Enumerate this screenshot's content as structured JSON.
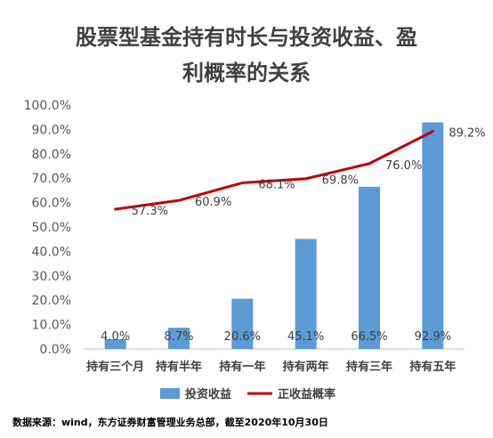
{
  "chart_data": {
    "type": "bar",
    "title_line1": "股票型基金持有时长与投资收益、盈",
    "title_line2": "利概率的关系",
    "categories": [
      "持有三个月",
      "持有半年",
      "持有一年",
      "持有两年",
      "持有三年",
      "持有五年"
    ],
    "ylim": [
      0,
      100
    ],
    "y_ticks": [
      "0.0%",
      "10.0%",
      "20.0%",
      "30.0%",
      "40.0%",
      "50.0%",
      "60.0%",
      "70.0%",
      "80.0%",
      "90.0%",
      "100.0%"
    ],
    "series": [
      {
        "name": "投资收益",
        "type": "bar",
        "color": "#5B9BD5",
        "values": [
          4.0,
          8.7,
          20.6,
          45.1,
          66.5,
          92.9
        ],
        "labels": [
          "4.0%",
          "8.7%",
          "20.6%",
          "45.1%",
          "66.5%",
          "92.9%"
        ]
      },
      {
        "name": "正收益概率",
        "type": "line",
        "color": "#C00000",
        "values": [
          57.3,
          60.9,
          68.1,
          69.8,
          76.0,
          89.2
        ],
        "labels": [
          "57.3%",
          "60.9%",
          "68.1%",
          "69.8%",
          "76.0%",
          "89.2%"
        ]
      }
    ],
    "legend_position": "bottom",
    "grid": false
  },
  "source_note": "数据来源：wind，东方证券财富管理业务总部，截至2020年10月30日"
}
